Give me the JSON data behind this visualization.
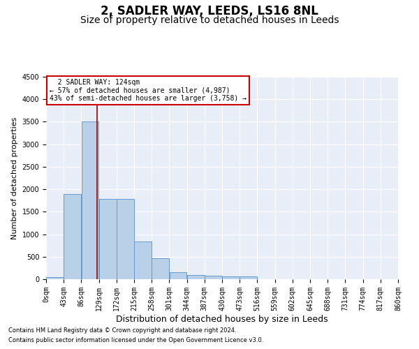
{
  "title": "2, SADLER WAY, LEEDS, LS16 8NL",
  "subtitle": "Size of property relative to detached houses in Leeds",
  "xlabel": "Distribution of detached houses by size in Leeds",
  "ylabel": "Number of detached properties",
  "footnote1": "Contains HM Land Registry data © Crown copyright and database right 2024.",
  "footnote2": "Contains public sector information licensed under the Open Government Licence v3.0.",
  "annotation_title": "2 SADLER WAY: 124sqm",
  "annotation_line1": "← 57% of detached houses are smaller (4,987)",
  "annotation_line2": "43% of semi-detached houses are larger (3,758) →",
  "property_size": 124,
  "bin_edges": [
    0,
    43,
    86,
    129,
    172,
    215,
    258,
    301,
    344,
    387,
    430,
    473,
    516,
    559,
    602,
    645,
    688,
    731,
    774,
    817,
    860
  ],
  "bar_values": [
    50,
    1900,
    3500,
    1780,
    1780,
    840,
    460,
    160,
    100,
    80,
    60,
    55,
    0,
    0,
    0,
    0,
    0,
    0,
    0,
    0
  ],
  "bar_color": "#b8d0e8",
  "bar_edge_color": "#6699cc",
  "vline_color": "#990000",
  "vline_x": 124,
  "ylim": [
    0,
    4500
  ],
  "yticks": [
    0,
    500,
    1000,
    1500,
    2000,
    2500,
    3000,
    3500,
    4000,
    4500
  ],
  "bg_color": "#e8eef8",
  "grid_color": "#ffffff",
  "annotation_box_color": "#ffffff",
  "annotation_box_edge": "#cc0000",
  "title_fontsize": 12,
  "subtitle_fontsize": 10,
  "ylabel_fontsize": 8,
  "xlabel_fontsize": 9,
  "tick_fontsize": 7,
  "annot_fontsize": 7,
  "footnote_fontsize": 6
}
